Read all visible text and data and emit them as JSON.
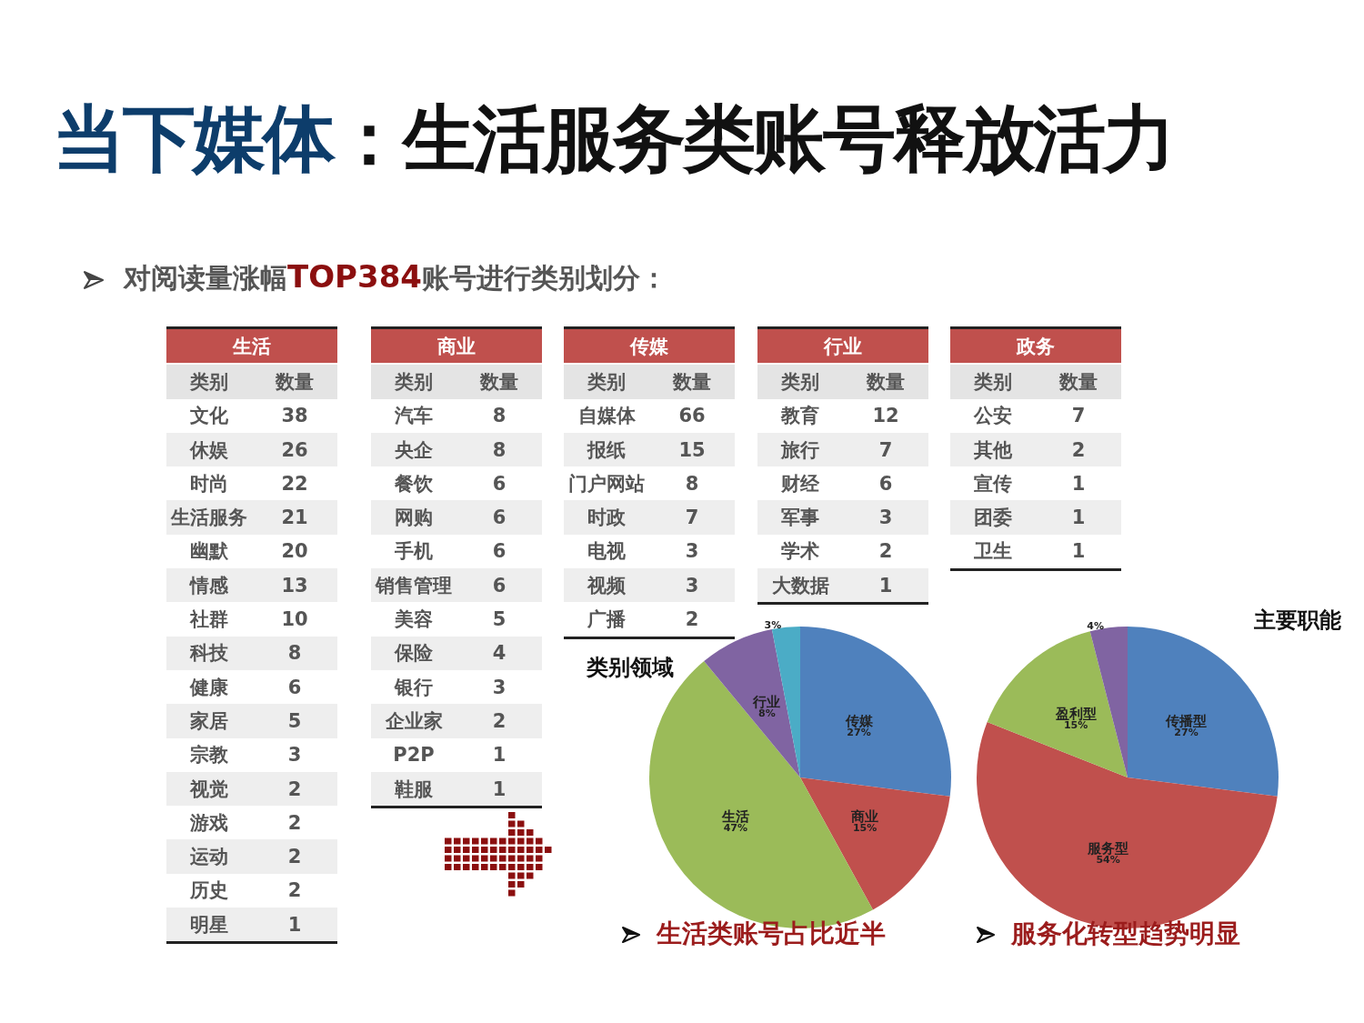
{
  "chart_data": [
    {
      "type": "other",
      "title": "当下媒体：生活服务类账号释放活力",
      "subtitle": "对阅读量涨幅TOP384账号进行类别划分："
    },
    {
      "type": "other",
      "title": "生活",
      "xlabel": "类别",
      "ylabel": "数量",
      "categories": [
        "文化",
        "休娱",
        "时尚",
        "生活服务",
        "幽默",
        "情感",
        "社群",
        "科技",
        "健康",
        "家居",
        "宗教",
        "视觉",
        "游戏",
        "运动",
        "历史",
        "明星"
      ],
      "values": [
        38,
        26,
        22,
        21,
        20,
        13,
        10,
        8,
        6,
        5,
        3,
        2,
        2,
        2,
        2,
        1
      ],
      "data_labels": true
    },
    {
      "type": "other",
      "title": "商业",
      "xlabel": "类别",
      "ylabel": "数量",
      "categories": [
        "汽车",
        "央企",
        "餐饮",
        "网购",
        "手机",
        "销售管理",
        "美容",
        "保险",
        "银行",
        "企业家",
        "P2P",
        "鞋服"
      ],
      "values": [
        8,
        8,
        6,
        6,
        6,
        6,
        5,
        4,
        3,
        2,
        1,
        1
      ],
      "data_labels": true
    },
    {
      "type": "other",
      "title": "传媒",
      "xlabel": "类别",
      "ylabel": "数量",
      "categories": [
        "自媒体",
        "报纸",
        "门户网站",
        "时政",
        "电视",
        "视频",
        "广播"
      ],
      "values": [
        66,
        15,
        8,
        7,
        3,
        3,
        2
      ],
      "data_labels": true
    },
    {
      "type": "other",
      "title": "行业",
      "xlabel": "类别",
      "ylabel": "数量",
      "categories": [
        "教育",
        "旅行",
        "财经",
        "军事",
        "学术",
        "大数据"
      ],
      "values": [
        12,
        7,
        6,
        3,
        2,
        1
      ],
      "data_labels": true
    },
    {
      "type": "other",
      "title": "政务",
      "xlabel": "类别",
      "ylabel": "数量",
      "categories": [
        "公安",
        "其他",
        "宣传",
        "团委",
        "卫生"
      ],
      "values": [
        7,
        2,
        1,
        1,
        1
      ],
      "data_labels": true
    },
    {
      "type": "pie",
      "title": "类别领域",
      "categories": [
        "传媒",
        "商业",
        "生活",
        "行业",
        null
      ],
      "values": [
        27,
        15,
        47,
        8,
        3
      ],
      "value_labels": [
        "27%",
        "15%",
        "47%",
        "8%",
        "3%"
      ],
      "colors": [
        "#4f81bd",
        "#c0504d",
        "#9bbb59",
        "#8064a2",
        "#4bacc6"
      ],
      "annotations": [
        "生活类账号占比近半"
      ]
    },
    {
      "type": "pie",
      "title": "主要职能",
      "categories": [
        "传播型",
        "服务型",
        "盈利型",
        null
      ],
      "values": [
        27,
        54,
        15,
        4
      ],
      "value_labels": [
        "27%",
        "54%",
        "15%",
        "4%"
      ],
      "colors": [
        "#4f81bd",
        "#c0504d",
        "#9bbb59",
        "#8064a2"
      ],
      "annotations": [
        "服务化转型趋势明显"
      ]
    }
  ]
}
